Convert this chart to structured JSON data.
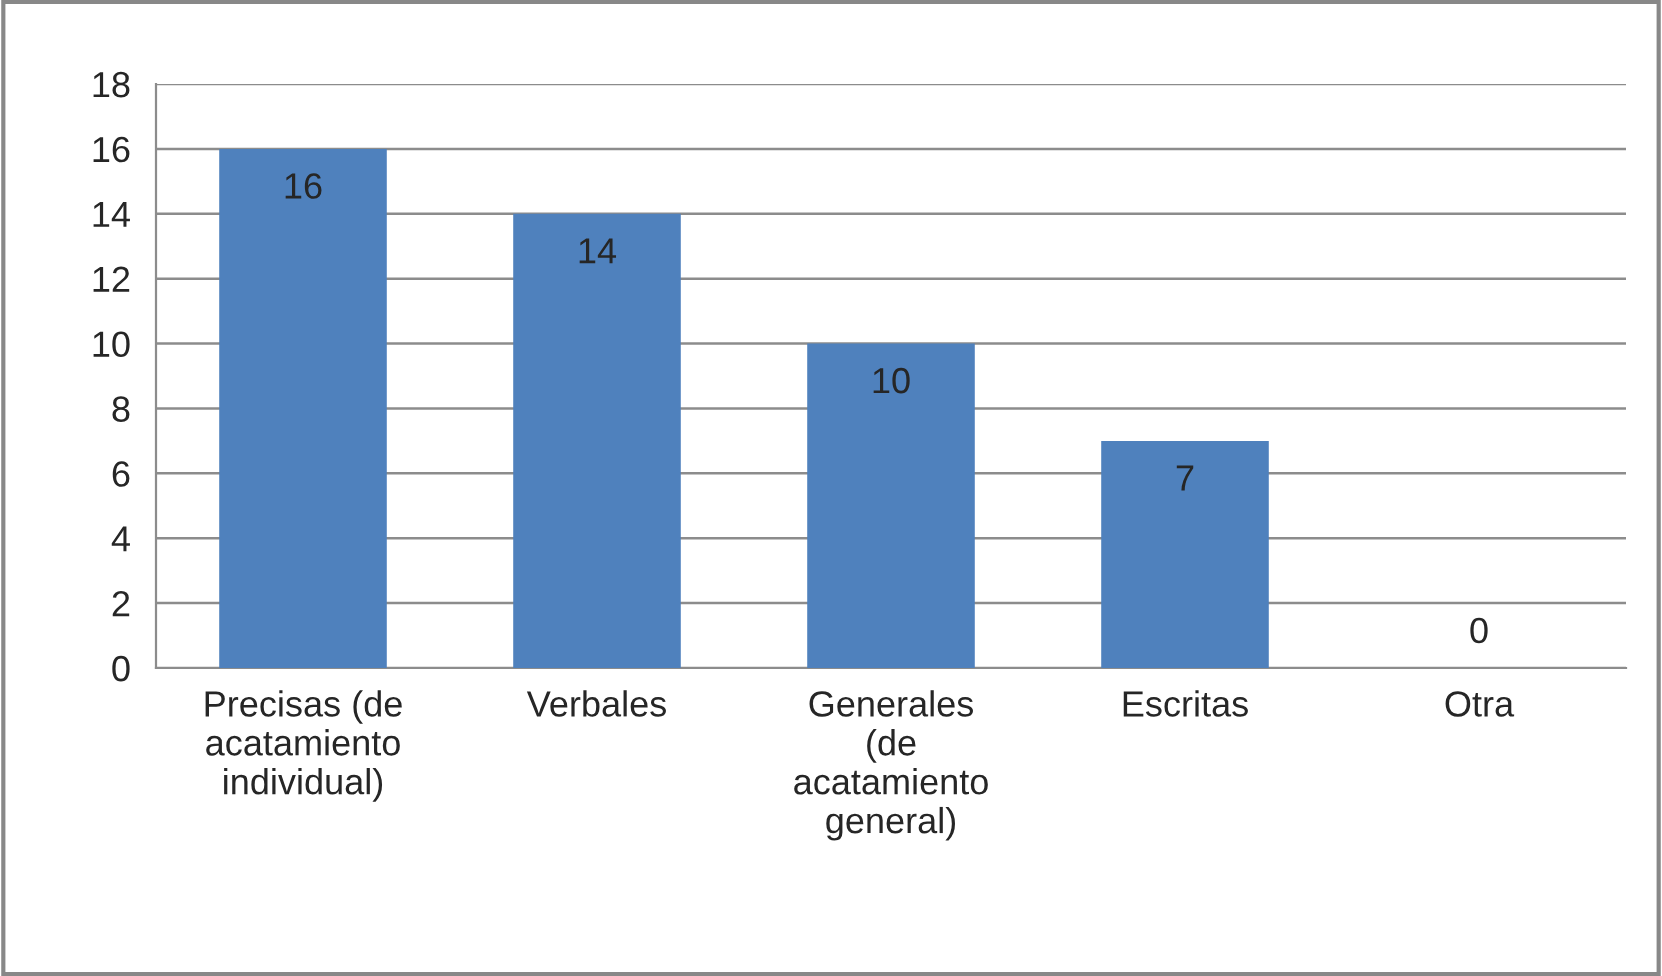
{
  "chart_data": {
    "type": "bar",
    "categories": [
      "Precisas (de\nacatamiento\nindividual)",
      "Verbales",
      "Generales\n(de\nacatamiento\ngeneral)",
      "Escritas",
      "Otra"
    ],
    "values": [
      16,
      14,
      10,
      7,
      0
    ],
    "color": "#4f81bd",
    "ylim": [
      0,
      18
    ],
    "yticks": [
      0,
      2,
      4,
      6,
      8,
      10,
      12,
      14,
      16,
      18
    ],
    "grid": "y",
    "data_labels": true
  }
}
